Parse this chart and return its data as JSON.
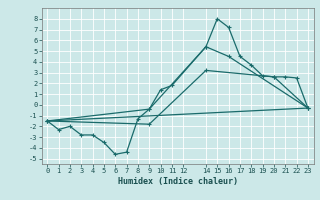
{
  "xlabel": "Humidex (Indice chaleur)",
  "bg_color": "#cce8e8",
  "grid_color": "#b0d8d8",
  "line_color": "#1a6b6b",
  "xlim": [
    -0.5,
    23.5
  ],
  "ylim": [
    -5.5,
    9.0
  ],
  "xtick_vals": [
    0,
    1,
    2,
    3,
    4,
    5,
    6,
    7,
    8,
    9,
    10,
    11,
    12,
    14,
    15,
    16,
    17,
    18,
    19,
    20,
    21,
    22,
    23
  ],
  "xtick_labels": [
    "0",
    "1",
    "2",
    "3",
    "4",
    "5",
    "6",
    "7",
    "8",
    "9",
    "10",
    "11",
    "12",
    "14",
    "15",
    "16",
    "17",
    "18",
    "19",
    "20",
    "21",
    "22",
    "23"
  ],
  "ytick_vals": [
    -5,
    -4,
    -3,
    -2,
    -1,
    0,
    1,
    2,
    3,
    4,
    5,
    6,
    7,
    8
  ],
  "line1_x": [
    0,
    1,
    2,
    3,
    4,
    5,
    6,
    7,
    8,
    9,
    10,
    11,
    14,
    15,
    16,
    17,
    18,
    19,
    20,
    21,
    22,
    23
  ],
  "line1_y": [
    -1.5,
    -2.3,
    -2.0,
    -2.8,
    -2.8,
    -3.5,
    -4.6,
    -4.4,
    -1.3,
    -0.4,
    1.4,
    1.8,
    5.4,
    8.0,
    7.2,
    4.5,
    3.7,
    2.7,
    2.6,
    2.6,
    2.5,
    -0.3
  ],
  "line2_x": [
    0,
    23
  ],
  "line2_y": [
    -1.5,
    -0.3
  ],
  "line3_x": [
    0,
    9,
    14,
    16,
    23
  ],
  "line3_y": [
    -1.5,
    -0.4,
    5.4,
    4.5,
    -0.3
  ],
  "line4_x": [
    0,
    9,
    14,
    20,
    23
  ],
  "line4_y": [
    -1.5,
    -1.8,
    3.2,
    2.6,
    -0.3
  ]
}
